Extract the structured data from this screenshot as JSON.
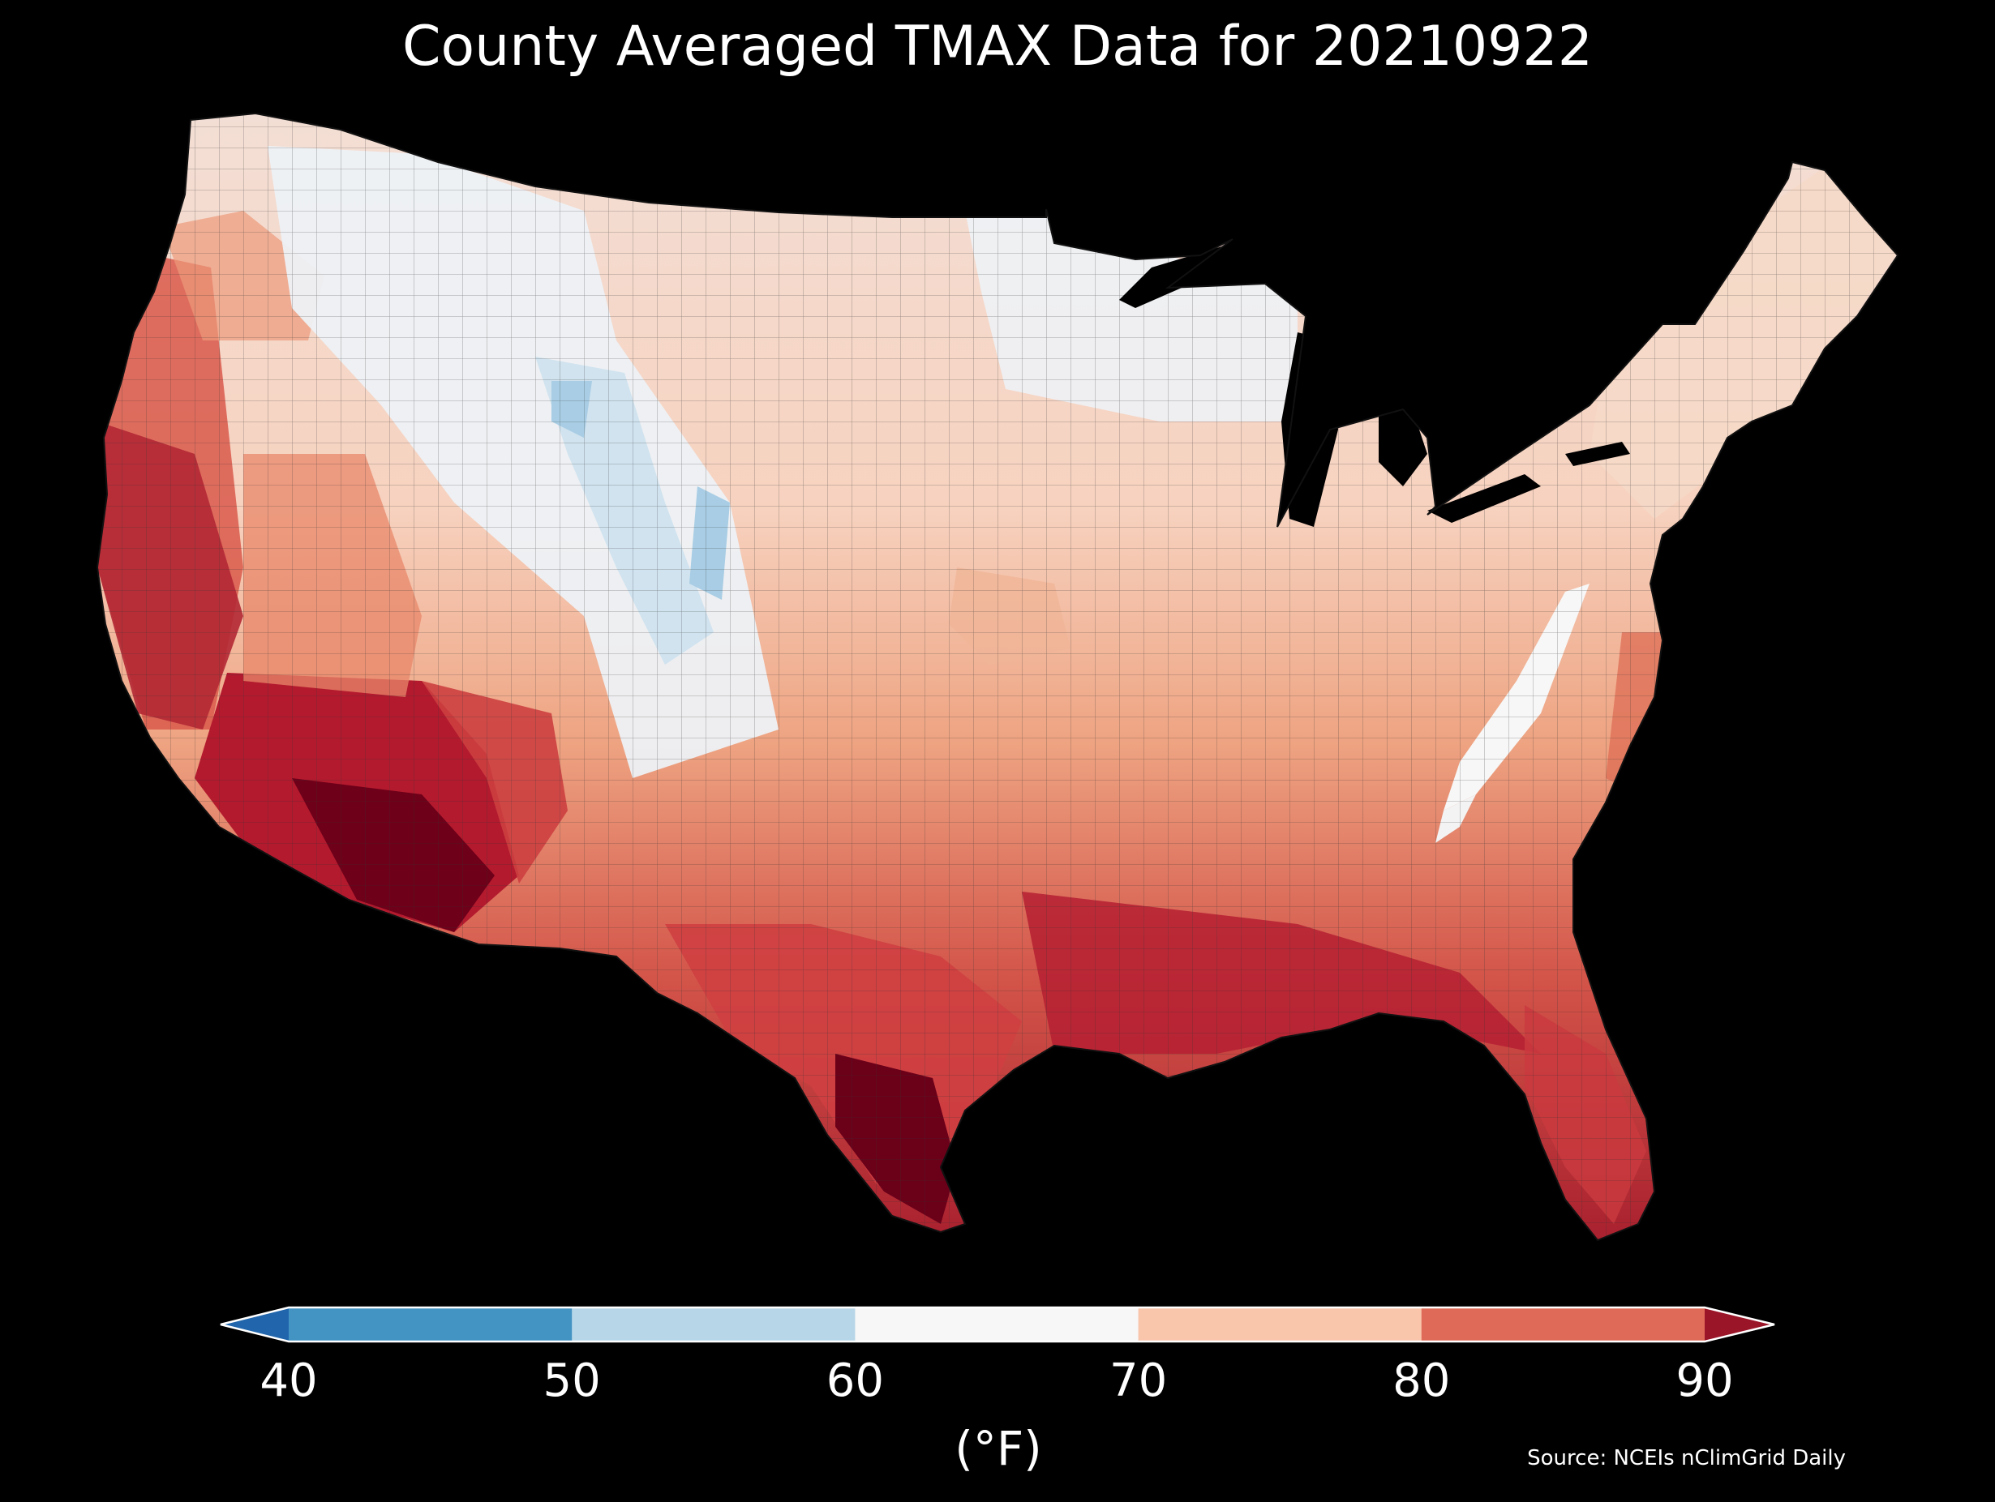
{
  "title": "County Averaged TMAX Data for 20210922",
  "source": "Source: NCEIs nClimGrid Daily",
  "colorbar": {
    "units": "(°F)",
    "ticks": [
      "40",
      "50",
      "60",
      "70",
      "80",
      "90"
    ],
    "bins": [
      {
        "range": "<40",
        "color": "#2166ac"
      },
      {
        "range": "40-50",
        "color": "#4393c3"
      },
      {
        "range": "50-60",
        "color": "#b7d7e8"
      },
      {
        "range": "60-70",
        "color": "#f7f7f7"
      },
      {
        "range": "70-80",
        "color": "#f9c5ab"
      },
      {
        "range": "80-90",
        "color": "#de6a57"
      },
      {
        "range": ">90",
        "color": "#9b1529"
      }
    ]
  },
  "map": {
    "region": "Contiguous United States",
    "colors": {
      "background": "#000000",
      "county_border": "#222222",
      "coldest_cells": "#a8cde4",
      "hottest_cells": "#6b0019"
    }
  }
}
